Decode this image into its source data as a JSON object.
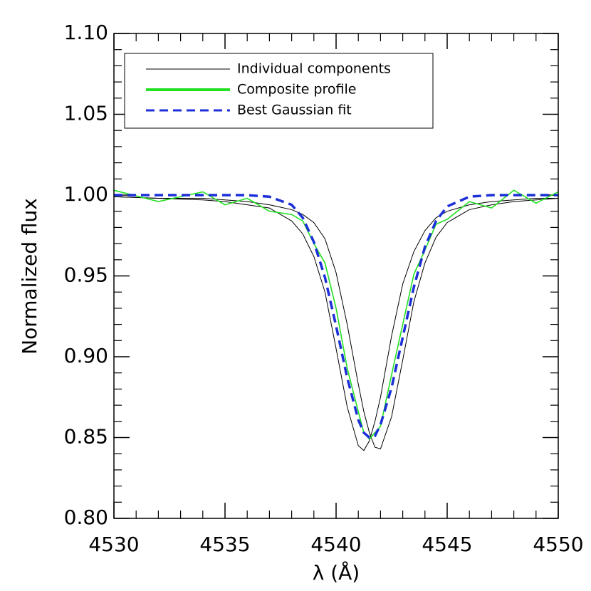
{
  "chart_data": {
    "type": "line",
    "x_label": "λ (Å)",
    "y_label": "Normalized flux",
    "x": [
      4530,
      4532,
      4534,
      4535,
      4536,
      4537,
      4538,
      4538.5,
      4539,
      4539.5,
      4540,
      4540.5,
      4541,
      4541.25,
      4541.5,
      4541.75,
      4542,
      4542.5,
      4543,
      4543.5,
      4544,
      4544.5,
      4545,
      4546,
      4547,
      4548,
      4549,
      4550
    ],
    "series": [
      {
        "name": "Individual components",
        "color": "#000000",
        "linestyle": "solid",
        "values": [
          0.999,
          0.998,
          0.997,
          0.996,
          0.994,
          0.992,
          0.984,
          0.976,
          0.962,
          0.94,
          0.905,
          0.869,
          0.845,
          0.842,
          0.848,
          0.86,
          0.875,
          0.913,
          0.945,
          0.965,
          0.978,
          0.986,
          0.99,
          0.994,
          0.996,
          0.997,
          0.998,
          0.998
        ]
      },
      {
        "color": "#000000",
        "linestyle": "solid",
        "values": [
          0.999,
          0.998,
          0.998,
          0.997,
          0.996,
          0.994,
          0.991,
          0.988,
          0.983,
          0.973,
          0.952,
          0.92,
          0.883,
          0.866,
          0.853,
          0.844,
          0.843,
          0.863,
          0.898,
          0.934,
          0.958,
          0.974,
          0.983,
          0.991,
          0.994,
          0.996,
          0.997,
          0.998
        ]
      },
      {
        "name": "Composite profile",
        "color": "#22e022",
        "linestyle": "solid",
        "values": [
          1.003,
          0.996,
          1.002,
          0.994,
          0.998,
          0.99,
          0.988,
          0.984,
          0.97,
          0.958,
          0.93,
          0.893,
          0.866,
          0.853,
          0.849,
          0.853,
          0.857,
          0.889,
          0.92,
          0.951,
          0.966,
          0.982,
          0.985,
          0.996,
          0.992,
          1.003,
          0.995,
          1.002
        ]
      },
      {
        "name": "Best Gaussian fit",
        "color": "#1c2fd8",
        "linestyle": "dashed",
        "values": [
          1.0,
          1.0,
          1.0,
          1.0,
          1.0,
          0.999,
          0.994,
          0.986,
          0.971,
          0.949,
          0.919,
          0.887,
          0.861,
          0.853,
          0.85,
          0.851,
          0.858,
          0.881,
          0.912,
          0.943,
          0.968,
          0.984,
          0.993,
          0.999,
          1.0,
          1.0,
          1.0,
          1.0
        ]
      }
    ],
    "xlim": [
      4530,
      4550
    ],
    "xticks": [
      4530,
      4535,
      4540,
      4545,
      4550
    ],
    "ylim": [
      0.8,
      1.1
    ],
    "yticks": [
      {
        "value": 0.8,
        "label": "0.80"
      },
      0.85,
      {
        "value": 0.9,
        "label": "0.90"
      },
      0.95,
      {
        "value": 1.0,
        "label": "1.00"
      },
      1.05,
      {
        "value": 1.1,
        "label": "1.10"
      }
    ],
    "legend": "upper left"
  }
}
